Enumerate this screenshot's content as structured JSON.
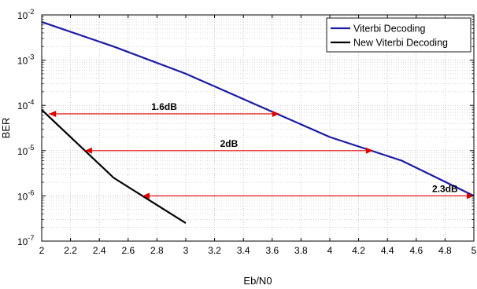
{
  "chart_data": {
    "type": "line",
    "title": "",
    "xlabel": "Eb/N0",
    "ylabel": "BER",
    "xlim": [
      2,
      5
    ],
    "ylim_exponent": [
      -7,
      -2
    ],
    "yscale": "log",
    "grid": true,
    "legend_position": "top-right",
    "x_ticks": [
      "2",
      "2.2",
      "2.4",
      "2.6",
      "2.8",
      "3",
      "3.2",
      "3.4",
      "3.6",
      "3.8",
      "4",
      "4.2",
      "4.4",
      "4.6",
      "4.8",
      "5"
    ],
    "y_ticks": [
      {
        "base": "10",
        "exp": "-7",
        "value": 1e-07
      },
      {
        "base": "10",
        "exp": "-6",
        "value": 1e-06
      },
      {
        "base": "10",
        "exp": "-5",
        "value": 1e-05
      },
      {
        "base": "10",
        "exp": "-4",
        "value": 0.0001
      },
      {
        "base": "10",
        "exp": "-3",
        "value": 0.001
      },
      {
        "base": "10",
        "exp": "-2",
        "value": 0.01
      }
    ],
    "series": [
      {
        "name": "Viterbi Decoding",
        "color": "#1a1aa8",
        "points": [
          [
            2.0,
            0.007
          ],
          [
            2.5,
            0.002
          ],
          [
            3.0,
            0.0005
          ],
          [
            3.5,
            0.0001
          ],
          [
            4.0,
            2e-05
          ],
          [
            4.5,
            6e-06
          ],
          [
            5.0,
            1e-06
          ]
        ]
      },
      {
        "name": "New Viterbi Decoding",
        "color": "#000000",
        "points": [
          [
            2.0,
            8e-05
          ],
          [
            2.5,
            2.5e-06
          ],
          [
            3.0,
            2.5e-07
          ]
        ]
      }
    ],
    "annotations": [
      {
        "text": "1.6dB",
        "y": 6.5e-05,
        "x_from": 2.05,
        "x_to": 3.65,
        "label_x": 2.85
      },
      {
        "text": "2dB",
        "y": 1e-05,
        "x_from": 2.3,
        "x_to": 4.3,
        "label_x": 3.3
      },
      {
        "text": "2.3dB",
        "y": 1e-06,
        "x_from": 2.7,
        "x_to": 5.0,
        "label_x": 4.8
      }
    ],
    "annotation_color": "#e00000"
  }
}
